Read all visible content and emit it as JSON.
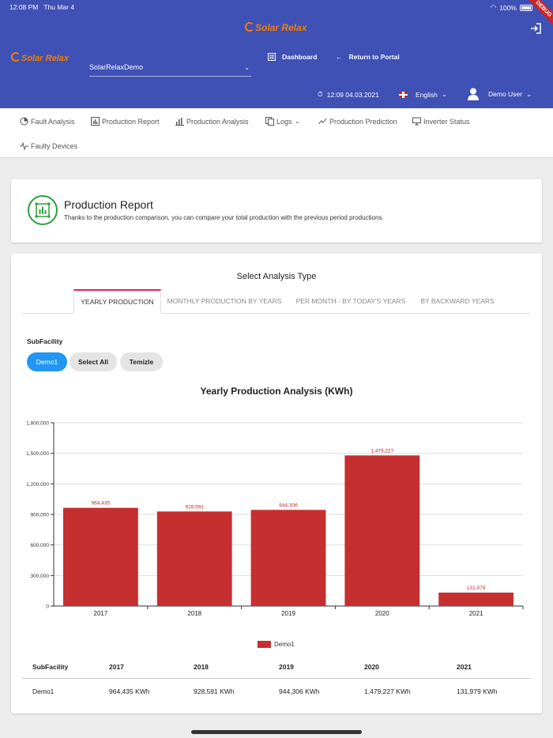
{
  "status": {
    "time": "12:08 PM",
    "date": "Thu Mar 4",
    "battery": "100%",
    "debug": "DEBUG"
  },
  "brand": {
    "logo_text": "Solar Relax",
    "header_logo_text": "Solar Relax"
  },
  "header": {
    "facility_select": "SolarRelaxDemo",
    "dashboard": "Dashboard",
    "return_portal": "Return to Portal",
    "datetime": "12:09 04.03.2021",
    "language": "English",
    "user": "Demo User"
  },
  "menu": {
    "items": [
      "Fault Analysis",
      "Production Report",
      "Production Analysis",
      "Logs",
      "Production Prediction",
      "Inverter Status",
      "Faulty Devices"
    ]
  },
  "report": {
    "title": "Production Report",
    "subtitle": "Thanks to the production comparison, you can compare your total production with the previous period productions."
  },
  "analysis": {
    "title": "Select Analysis Type",
    "tabs": [
      "YEARLY PRODUCTION",
      "MONTHLY PRODUCTION BY YEARS",
      "PER MONTH - BY TODAY'S YEARS",
      "BY BACKWARD YEARS"
    ],
    "active_tab": 0,
    "subfacility_label": "SubFacility",
    "chips": [
      "Demo1",
      "Select All",
      "Temizle"
    ]
  },
  "chart_data": {
    "type": "bar",
    "title": "Yearly Production Analysis (KWh)",
    "categories": [
      "2017",
      "2018",
      "2019",
      "2020",
      "2021"
    ],
    "series": [
      {
        "name": "Demo1",
        "values": [
          964435,
          928591,
          944306,
          1479227,
          131979
        ],
        "color": "#c62f2f"
      }
    ],
    "data_labels": [
      "964,435",
      "928,591",
      "944,306",
      "1,479,227",
      "131,979"
    ],
    "yticks": [
      0,
      300000,
      600000,
      900000,
      1200000,
      1500000,
      1800000
    ],
    "ytick_labels": [
      "0",
      "300,000",
      "600,000",
      "900,000",
      "1,200,000",
      "1,500,000",
      "1,800,000"
    ],
    "ylim": [
      0,
      1800000
    ],
    "grid": true,
    "legend": "bottom-center"
  },
  "table": {
    "headers": [
      "SubFacility",
      "2017",
      "2018",
      "2019",
      "2020",
      "2021"
    ],
    "rows": [
      [
        "Demo1",
        "964,435 KWh",
        "928,591 KWh",
        "944,306 KWh",
        "1,479,227 KWh",
        "131,979 KWh"
      ]
    ]
  },
  "colors": {
    "header": "#3f51b5",
    "accent": "#e91e63",
    "chip": "#2196f3",
    "bar": "#c62f2f",
    "icon_green": "#2e9e3c"
  }
}
